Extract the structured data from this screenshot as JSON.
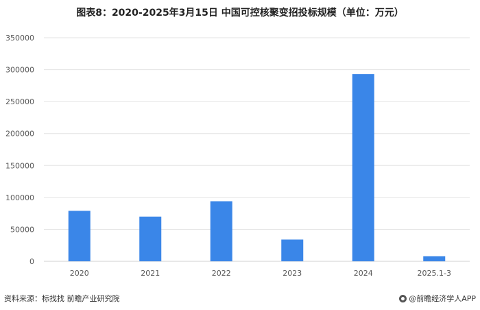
{
  "title": "图表8：2020-2025年3月15日 中国可控核聚变招投标规模（单位：万元）",
  "source": "资料来源：标找找 前瞻产业研究院",
  "brand": "@前瞻经济学人APP",
  "colors": {
    "bar": "#3a86e8",
    "grid": "#e3e3e3",
    "axis": "#d0d0d0"
  },
  "chart_data": {
    "type": "bar",
    "categories": [
      "2020",
      "2021",
      "2022",
      "2023",
      "2024",
      "2025.1-3"
    ],
    "values": [
      79000,
      70000,
      94000,
      34000,
      293000,
      8000
    ],
    "ylim": [
      0,
      350000
    ],
    "yticks": [
      0,
      50000,
      100000,
      150000,
      200000,
      250000,
      300000,
      350000
    ],
    "ytick_labels": [
      "0",
      "50000",
      "100000",
      "150000",
      "200000",
      "250000",
      "300000",
      "350000"
    ],
    "grid": true,
    "xlabel": "",
    "ylabel": ""
  }
}
